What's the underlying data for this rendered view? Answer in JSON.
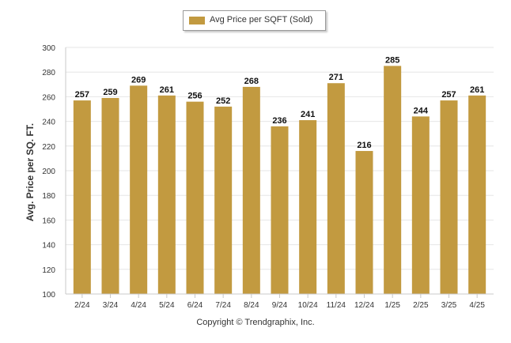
{
  "legend": {
    "label": "Avg Price per SQFT (Sold)"
  },
  "footer": {
    "copyright": "Copyright © Trendgraphix, Inc."
  },
  "colors": {
    "bar": "#c29a40",
    "grid": "#e6e6e6",
    "axis": "#c8c8c8",
    "text": "#333333"
  },
  "chart_data": {
    "type": "bar",
    "title": "",
    "xlabel": "",
    "ylabel": "Avg. Price per SQ. FT.",
    "categories": [
      "2/24",
      "3/24",
      "4/24",
      "5/24",
      "6/24",
      "7/24",
      "8/24",
      "9/24",
      "10/24",
      "11/24",
      "12/24",
      "1/25",
      "2/25",
      "3/25",
      "4/25"
    ],
    "series": [
      {
        "name": "Avg Price per SQFT (Sold)",
        "values": [
          257,
          259,
          269,
          261,
          256,
          252,
          268,
          236,
          241,
          271,
          216,
          285,
          244,
          257,
          261
        ]
      }
    ],
    "ylim": [
      100,
      300
    ],
    "yticks": [
      100,
      120,
      140,
      160,
      180,
      200,
      220,
      240,
      260,
      280,
      300
    ],
    "grid": true,
    "legend_position": "top-center"
  }
}
